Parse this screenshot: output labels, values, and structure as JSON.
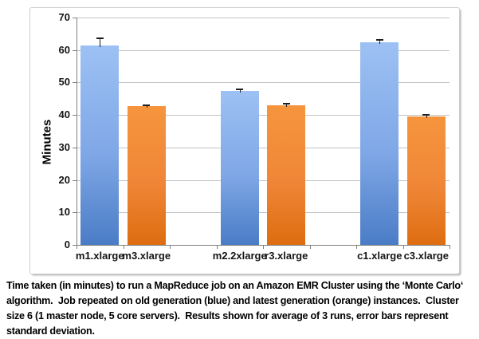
{
  "chart_data": {
    "type": "bar",
    "title": "",
    "xlabel": "",
    "ylabel": "Minutes",
    "ylim": [
      0,
      70
    ],
    "ytick_step": 10,
    "grid": true,
    "legend": "none",
    "bars": [
      {
        "label": "m1.xlarge",
        "value": 61.5,
        "error": 2.0,
        "series": "blue"
      },
      {
        "label": "m3.xlarge",
        "value": 42.7,
        "error": 0.4,
        "series": "orange"
      },
      {
        "label": "m2.2xlarge",
        "value": 47.4,
        "error": 0.4,
        "series": "blue"
      },
      {
        "label": "r3.xlarge",
        "value": 43.0,
        "error": 0.4,
        "series": "orange"
      },
      {
        "label": "c1.xlarge",
        "value": 62.4,
        "error": 0.7,
        "series": "blue"
      },
      {
        "label": "c3.xlarge",
        "value": 39.5,
        "error": 0.5,
        "series": "orange"
      }
    ],
    "groups": [
      [
        "m1.xlarge",
        "m3.xlarge"
      ],
      [
        "m2.2xlarge",
        "r3.xlarge"
      ],
      [
        "c1.xlarge",
        "c3.xlarge"
      ]
    ],
    "series_colors": {
      "blue": {
        "top": "#9DC1F4",
        "mid": "#7FA7E6",
        "bottom": "#4A7CC6"
      },
      "orange": {
        "top": "#F6953E",
        "mid": "#EF8637",
        "bottom": "#DE6D10"
      }
    },
    "grid_color": "#C3C3C3",
    "axis_color": "#7F7F7F",
    "error_bar_color": "#1F1F1F"
  },
  "caption": {
    "text": "Time taken (in minutes) to run a MapReduce job on an Amazon EMR Cluster using the ‘Monte Carlo‘ algorithm.  Job repeated on old generation (blue) and latest generation (orange) instances.  Cluster size 6 (1 master node, 5 core servers).  Results shown for average of 3 runs, error bars represent standard deviation."
  }
}
